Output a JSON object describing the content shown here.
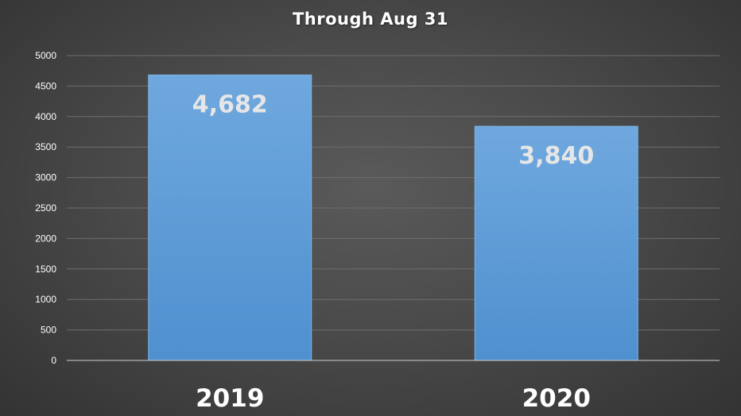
{
  "chart_data": {
    "type": "bar",
    "title": "Through Aug 31",
    "categories": [
      "2019",
      "2020"
    ],
    "values": [
      4682,
      3840
    ],
    "data_labels": [
      "4,682",
      "3,840"
    ],
    "ylim": [
      0,
      5000
    ],
    "yticks": [
      0,
      500,
      1000,
      1500,
      2000,
      2500,
      3000,
      3500,
      4000,
      4500,
      5000
    ],
    "grid": true,
    "legend": "none",
    "bar_color": "#5b9bd5",
    "bar_color_top": "#6fa8de",
    "bar_color_bottom": "#4f90cf"
  }
}
